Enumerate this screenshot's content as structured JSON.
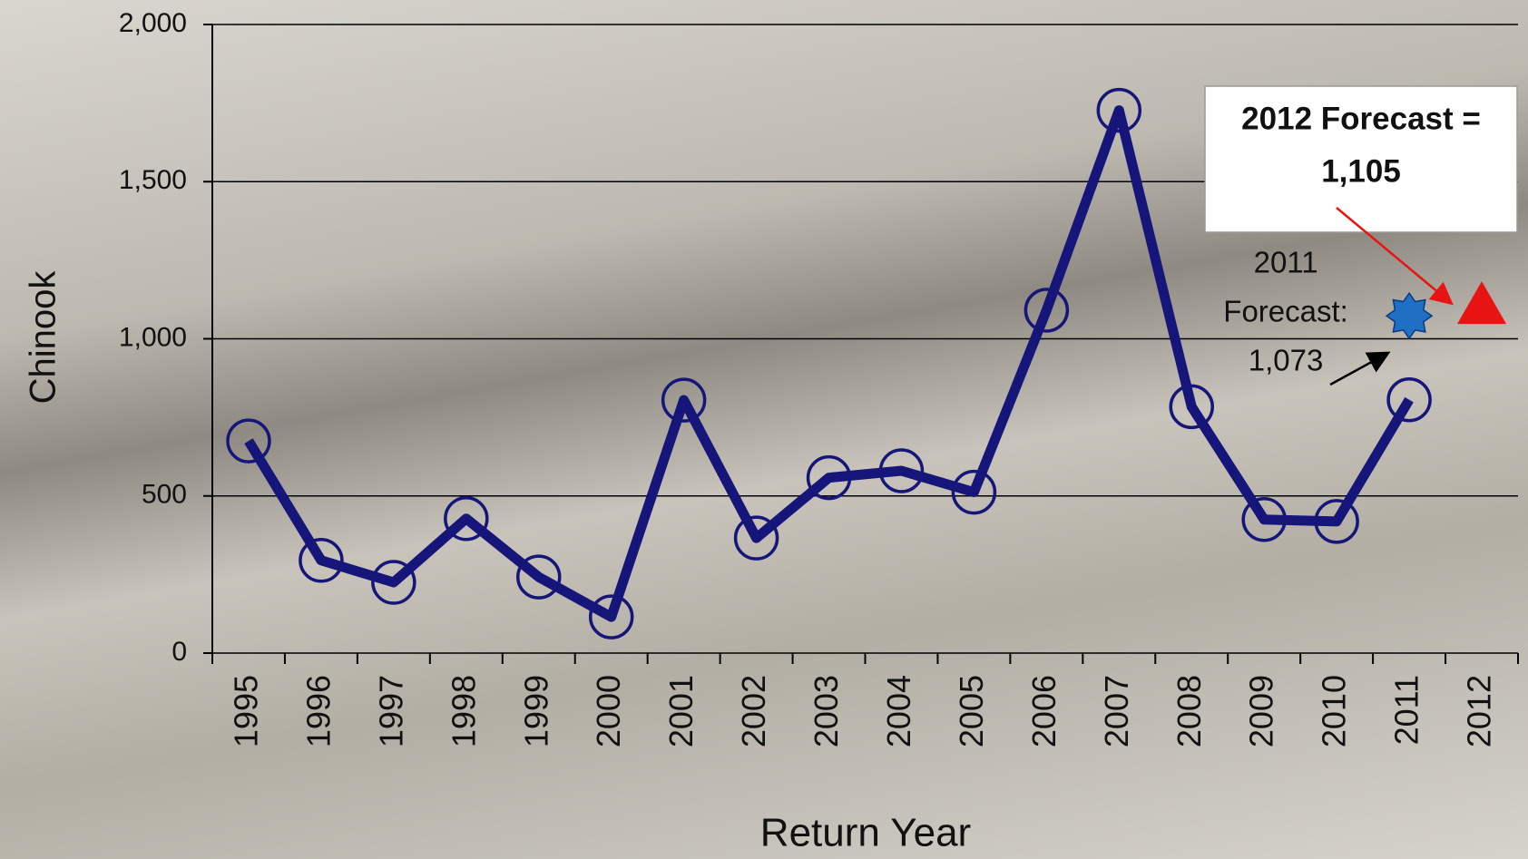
{
  "chart_data": {
    "type": "line",
    "x_label": "Return Year",
    "y_label": "Chinook",
    "categories": [
      "1995",
      "1996",
      "1997",
      "1998",
      "1999",
      "2000",
      "2001",
      "2002",
      "2003",
      "2004",
      "2005",
      "2006",
      "2007",
      "2008",
      "2009",
      "2010",
      "2011",
      "2012"
    ],
    "series": [
      {
        "color": "#16167a",
        "values": [
          675,
          295,
          225,
          428,
          242,
          115,
          805,
          366,
          558,
          580,
          512,
          1091,
          1727,
          784,
          425,
          419,
          806,
          null
        ]
      }
    ],
    "ylim": [
      0,
      2000
    ],
    "yticks": [
      0,
      {
        "value": 500,
        "label": "500"
      },
      {
        "value": 1000,
        "label": "1,000"
      },
      {
        "value": 1500,
        "label": "1,500"
      },
      {
        "value": 2000,
        "label": "2,000"
      }
    ],
    "grid": true,
    "annotations": [
      {
        "text": [
          "2011",
          "Forecast:"
        ],
        "value": 1073,
        "value_label": "1,073",
        "category": "2011",
        "marker": "star",
        "color": "#1f6fc4"
      },
      {
        "text": [
          "2012 Forecast ="
        ],
        "value": 1105,
        "value_label": "1,105",
        "category": "2012",
        "marker": "triangle",
        "color": "#e81414",
        "text_color": "#1a1aff",
        "boxed": true
      }
    ]
  }
}
